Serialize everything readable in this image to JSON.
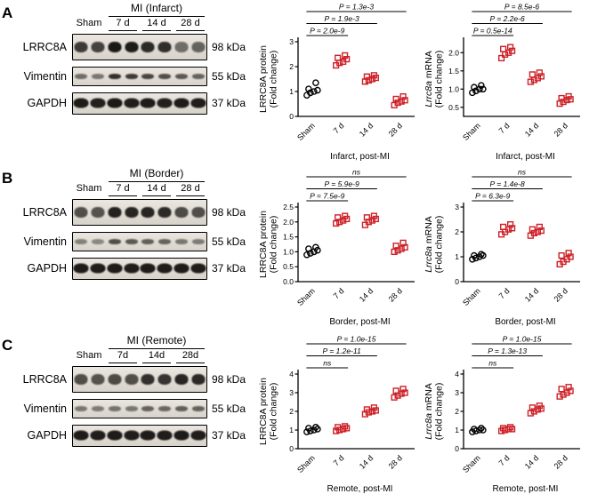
{
  "colors": {
    "sham_marker": "#000000",
    "mi_marker": "#cd2027",
    "axis": "#000000"
  },
  "panels": [
    {
      "letter": "A",
      "blot": {
        "title": "MI (Infarct)",
        "lane_groups": [
          "Sham",
          "7 d",
          "14 d",
          "28 d"
        ],
        "rows": [
          {
            "label": "LRRC8A",
            "kda": "98 kDa",
            "band_height": 12,
            "band_width": 15,
            "intensities": [
              0.8,
              0.76,
              0.97,
              0.95,
              0.88,
              0.86,
              0.55,
              0.6
            ]
          },
          {
            "label": "Vimentin",
            "kda": "55 kDa",
            "band_height": 6,
            "band_width": 14,
            "intensities": [
              0.55,
              0.5,
              0.85,
              0.8,
              0.75,
              0.7,
              0.65,
              0.6
            ]
          },
          {
            "label": "GAPDH",
            "kda": "37 kDa",
            "band_height": 11,
            "band_width": 17,
            "intensities": [
              0.95,
              0.93,
              0.96,
              0.94,
              0.95,
              0.93,
              0.95,
              0.94
            ]
          }
        ]
      },
      "charts": [
        {
          "name": "lrrc8a-protein-infarct",
          "ylabel1": "LRRC8A protein",
          "ylabel2": "(Fold change)",
          "ylabel_italic": false,
          "ylim": [
            0,
            3
          ],
          "yticks": [
            "0",
            "1",
            "2",
            "3"
          ],
          "categories": [
            "Sham",
            "7 d",
            "14 d",
            "28 d"
          ],
          "groups": [
            {
              "label": "Sham",
              "marker": "circle",
              "values": [
                0.85,
                0.95,
                1.0,
                1.05,
                1.1,
                1.35
              ]
            },
            {
              "label": "7 d",
              "marker": "square",
              "values": [
                2.05,
                2.15,
                2.2,
                2.3,
                2.35,
                2.45
              ]
            },
            {
              "label": "14 d",
              "marker": "square",
              "values": [
                1.4,
                1.45,
                1.5,
                1.55,
                1.6,
                1.65
              ]
            },
            {
              "label": "28 d",
              "marker": "square",
              "values": [
                0.45,
                0.55,
                0.6,
                0.65,
                0.7,
                0.8
              ]
            }
          ],
          "comparisons": [
            {
              "from": 0,
              "to": 1,
              "label": "P = 2.0e-9"
            },
            {
              "from": 0,
              "to": 2,
              "label": "P = 1.9e-3"
            },
            {
              "from": 0,
              "to": 3,
              "label": "P = 1.3e-3"
            }
          ],
          "xlabel": "Infarct, post-MI"
        },
        {
          "name": "lrrc8a-mrna-infarct",
          "ylabel1": "Lrrc8a mRNA",
          "ylabel2": "(Fold change)",
          "ylabel_italic": true,
          "ylim": [
            0.25,
            2.3
          ],
          "yticks": [
            "0.5",
            "1.0",
            "1.5",
            "2.0"
          ],
          "categories": [
            "Sham",
            "7 d",
            "14 d",
            "28 d"
          ],
          "groups": [
            {
              "label": "Sham",
              "marker": "circle",
              "values": [
                0.9,
                0.95,
                1.0,
                1.0,
                1.05,
                1.1
              ]
            },
            {
              "label": "7 d",
              "marker": "square",
              "values": [
                1.85,
                1.95,
                2.0,
                2.05,
                2.1,
                2.15
              ]
            },
            {
              "label": "14 d",
              "marker": "square",
              "values": [
                1.2,
                1.25,
                1.3,
                1.35,
                1.4,
                1.45
              ]
            },
            {
              "label": "28 d",
              "marker": "square",
              "values": [
                0.6,
                0.65,
                0.7,
                0.72,
                0.75,
                0.8
              ]
            }
          ],
          "comparisons": [
            {
              "from": 0,
              "to": 1,
              "label": "P = 0.5e-14"
            },
            {
              "from": 0,
              "to": 2,
              "label": "P = 2.2e-6"
            },
            {
              "from": 0,
              "to": 3,
              "label": "P = 8.5e-6"
            }
          ],
          "xlabel": "Infarct, post-MI"
        }
      ]
    },
    {
      "letter": "B",
      "blot": {
        "title": "MI (Border)",
        "lane_groups": [
          "Sham",
          "7 d",
          "14 d",
          "28 d"
        ],
        "rows": [
          {
            "label": "LRRC8A",
            "kda": "98 kDa",
            "band_height": 12,
            "band_width": 15,
            "intensities": [
              0.7,
              0.68,
              0.92,
              0.9,
              0.9,
              0.88,
              0.72,
              0.7
            ]
          },
          {
            "label": "Vimentin",
            "kda": "55 kDa",
            "band_height": 6,
            "band_width": 14,
            "intensities": [
              0.45,
              0.42,
              0.7,
              0.65,
              0.62,
              0.6,
              0.5,
              0.48
            ]
          },
          {
            "label": "GAPDH",
            "kda": "37 kDa",
            "band_height": 11,
            "band_width": 17,
            "intensities": [
              0.95,
              0.94,
              0.95,
              0.94,
              0.95,
              0.94,
              0.95,
              0.94
            ]
          }
        ]
      },
      "charts": [
        {
          "name": "lrrc8a-protein-border",
          "ylabel1": "LRRC8A protein",
          "ylabel2": "(Fold change)",
          "ylabel_italic": false,
          "ylim": [
            0,
            2.5
          ],
          "yticks": [
            "0.0",
            "0.5",
            "1.0",
            "1.5",
            "2.0",
            "2.5"
          ],
          "categories": [
            "Sham",
            "7 d",
            "14 d",
            "28 d"
          ],
          "groups": [
            {
              "label": "Sham",
              "marker": "circle",
              "values": [
                0.9,
                0.95,
                1.0,
                1.05,
                1.1,
                1.15
              ]
            },
            {
              "label": "7 d",
              "marker": "square",
              "values": [
                1.95,
                2.0,
                2.05,
                2.1,
                2.15,
                2.2
              ]
            },
            {
              "label": "14 d",
              "marker": "square",
              "values": [
                1.9,
                2.0,
                2.05,
                2.1,
                2.15,
                2.2
              ]
            },
            {
              "label": "28 d",
              "marker": "square",
              "values": [
                1.0,
                1.05,
                1.1,
                1.15,
                1.2,
                1.3
              ]
            }
          ],
          "comparisons": [
            {
              "from": 0,
              "to": 1,
              "label": "P = 7.5e-9"
            },
            {
              "from": 0,
              "to": 2,
              "label": "P = 5.9e-9"
            },
            {
              "from": 0,
              "to": 3,
              "label": "ns"
            }
          ],
          "xlabel": "Border, post-MI"
        },
        {
          "name": "lrrc8a-mrna-border",
          "ylabel1": "Lrrc8a mRNA",
          "ylabel2": "(Fold change)",
          "ylabel_italic": true,
          "ylim": [
            0,
            3
          ],
          "yticks": [
            "0",
            "1",
            "2",
            "3"
          ],
          "categories": [
            "Sham",
            "7 d",
            "14 d",
            "28 d"
          ],
          "groups": [
            {
              "label": "Sham",
              "marker": "circle",
              "values": [
                0.9,
                0.95,
                1.0,
                1.05,
                1.05,
                1.1
              ]
            },
            {
              "label": "7 d",
              "marker": "square",
              "values": [
                1.9,
                2.0,
                2.1,
                2.15,
                2.2,
                2.3
              ]
            },
            {
              "label": "14 d",
              "marker": "square",
              "values": [
                1.85,
                1.95,
                2.0,
                2.05,
                2.1,
                2.2
              ]
            },
            {
              "label": "28 d",
              "marker": "square",
              "values": [
                0.7,
                0.8,
                0.9,
                1.0,
                1.05,
                1.15
              ]
            }
          ],
          "comparisons": [
            {
              "from": 0,
              "to": 1,
              "label": "P = 6.3e-9"
            },
            {
              "from": 0,
              "to": 2,
              "label": "P = 1.4e-8"
            },
            {
              "from": 0,
              "to": 3,
              "label": "ns"
            }
          ],
          "xlabel": "Border, post-MI"
        }
      ]
    },
    {
      "letter": "C",
      "blot": {
        "title": "MI (Remote)",
        "lane_groups": [
          "Sham",
          "7d",
          "14d",
          "28d"
        ],
        "rows": [
          {
            "label": "LRRC8A",
            "kda": "98 kDa",
            "band_height": 12,
            "band_width": 15,
            "intensities": [
              0.7,
              0.68,
              0.72,
              0.7,
              0.85,
              0.83,
              0.9,
              0.88
            ]
          },
          {
            "label": "Vimentin",
            "kda": "55 kDa",
            "band_height": 6,
            "band_width": 14,
            "intensities": [
              0.5,
              0.48,
              0.52,
              0.5,
              0.6,
              0.58,
              0.62,
              0.6
            ]
          },
          {
            "label": "GAPDH",
            "kda": "37 kDa",
            "band_height": 11,
            "band_width": 17,
            "intensities": [
              0.95,
              0.94,
              0.95,
              0.94,
              0.95,
              0.94,
              0.95,
              0.94
            ]
          }
        ]
      },
      "charts": [
        {
          "name": "lrrc8a-protein-remote",
          "ylabel1": "LRRC8A protein",
          "ylabel2": "(Fold change)",
          "ylabel_italic": false,
          "ylim": [
            0,
            4
          ],
          "yticks": [
            "0",
            "1",
            "2",
            "3",
            "4"
          ],
          "categories": [
            "Sham",
            "7 d",
            "14 d",
            "28 d"
          ],
          "groups": [
            {
              "label": "Sham",
              "marker": "circle",
              "values": [
                0.9,
                0.95,
                1.0,
                1.05,
                1.1,
                1.15
              ]
            },
            {
              "label": "7 d",
              "marker": "square",
              "values": [
                0.95,
                1.0,
                1.05,
                1.1,
                1.15,
                1.2
              ]
            },
            {
              "label": "14 d",
              "marker": "square",
              "values": [
                1.85,
                1.95,
                2.0,
                2.05,
                2.1,
                2.2
              ]
            },
            {
              "label": "28 d",
              "marker": "square",
              "values": [
                2.75,
                2.85,
                2.95,
                3.0,
                3.1,
                3.2
              ]
            }
          ],
          "comparisons": [
            {
              "from": 0,
              "to": 1,
              "label": "ns"
            },
            {
              "from": 0,
              "to": 2,
              "label": "P = 1.2e-11"
            },
            {
              "from": 0,
              "to": 3,
              "label": "P = 1.0e-15"
            }
          ],
          "xlabel": "Remote, post-MI"
        },
        {
          "name": "lrrc8a-mrna-remote",
          "ylabel1": "Lrrc8a mRNA",
          "ylabel2": "(Fold change)",
          "ylabel_italic": true,
          "ylim": [
            0,
            4
          ],
          "yticks": [
            "0",
            "1",
            "2",
            "3",
            "4"
          ],
          "categories": [
            "Sham",
            "7 d",
            "14 d",
            "28 d"
          ],
          "groups": [
            {
              "label": "Sham",
              "marker": "circle",
              "values": [
                0.9,
                0.95,
                1.0,
                1.0,
                1.05,
                1.1
              ]
            },
            {
              "label": "7 d",
              "marker": "square",
              "values": [
                0.95,
                1.0,
                1.05,
                1.05,
                1.1,
                1.15
              ]
            },
            {
              "label": "14 d",
              "marker": "square",
              "values": [
                1.9,
                2.0,
                2.1,
                2.15,
                2.2,
                2.3
              ]
            },
            {
              "label": "28 d",
              "marker": "square",
              "values": [
                2.8,
                2.9,
                3.0,
                3.1,
                3.2,
                3.3
              ]
            }
          ],
          "comparisons": [
            {
              "from": 0,
              "to": 1,
              "label": "ns"
            },
            {
              "from": 0,
              "to": 2,
              "label": "P = 1.3e-13"
            },
            {
              "from": 0,
              "to": 3,
              "label": "P = 1.0e-15"
            }
          ],
          "xlabel": "Remote, post-MI"
        }
      ]
    }
  ]
}
